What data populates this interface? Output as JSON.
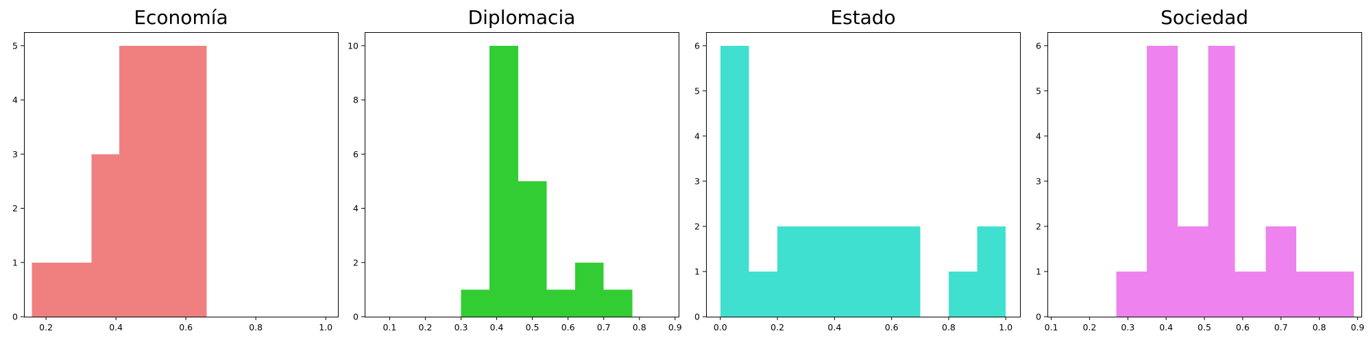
{
  "chart_data": [
    {
      "type": "histogram",
      "title": "Economía",
      "color": "#f08080",
      "xlim": [
        0.137,
        1.035
      ],
      "ylim": [
        0,
        5.25
      ],
      "xticks": [
        0.2,
        0.4,
        0.6,
        0.8,
        1.0
      ],
      "xtick_labels": [
        "0.2",
        "0.4",
        "0.6",
        "0.8",
        "1.0"
      ],
      "yticks": [
        0,
        1,
        2,
        3,
        4,
        5
      ],
      "ytick_labels": [
        "0",
        "1",
        "2",
        "3",
        "4",
        "5"
      ],
      "bins": [
        {
          "x0": 0.16,
          "x1": 0.26,
          "count": 1
        },
        {
          "x0": 0.26,
          "x1": 0.33,
          "count": 1
        },
        {
          "x0": 0.33,
          "x1": 0.41,
          "count": 3
        },
        {
          "x0": 0.41,
          "x1": 0.5,
          "count": 5
        },
        {
          "x0": 0.5,
          "x1": 0.58,
          "count": 5
        },
        {
          "x0": 0.58,
          "x1": 0.66,
          "count": 5
        }
      ]
    },
    {
      "type": "histogram",
      "title": "Diplomacia",
      "color": "#32cd32",
      "xlim": [
        0.03,
        0.91
      ],
      "ylim": [
        0,
        10.5
      ],
      "xticks": [
        0.1,
        0.2,
        0.3,
        0.4,
        0.5,
        0.6,
        0.7,
        0.8,
        0.9
      ],
      "xtick_labels": [
        "0.1",
        "0.2",
        "0.3",
        "0.4",
        "0.5",
        "0.6",
        "0.7",
        "0.8",
        "0.9"
      ],
      "yticks": [
        0,
        2,
        4,
        6,
        8,
        10
      ],
      "ytick_labels": [
        "0",
        "2",
        "4",
        "6",
        "8",
        "10"
      ],
      "bins": [
        {
          "x0": 0.3,
          "x1": 0.38,
          "count": 1
        },
        {
          "x0": 0.38,
          "x1": 0.46,
          "count": 10
        },
        {
          "x0": 0.46,
          "x1": 0.54,
          "count": 5
        },
        {
          "x0": 0.54,
          "x1": 0.62,
          "count": 1
        },
        {
          "x0": 0.62,
          "x1": 0.7,
          "count": 2
        },
        {
          "x0": 0.7,
          "x1": 0.78,
          "count": 1
        }
      ]
    },
    {
      "type": "histogram",
      "title": "Estado",
      "color": "#40e0d0",
      "xlim": [
        -0.05,
        1.05
      ],
      "ylim": [
        0,
        6.3
      ],
      "xticks": [
        0.0,
        0.2,
        0.4,
        0.6,
        0.8,
        1.0
      ],
      "xtick_labels": [
        "0.0",
        "0.2",
        "0.4",
        "0.6",
        "0.8",
        "1.0"
      ],
      "yticks": [
        0,
        1,
        2,
        3,
        4,
        5,
        6
      ],
      "ytick_labels": [
        "0",
        "1",
        "2",
        "3",
        "4",
        "5",
        "6"
      ],
      "bins": [
        {
          "x0": 0.0,
          "x1": 0.1,
          "count": 6
        },
        {
          "x0": 0.1,
          "x1": 0.2,
          "count": 1
        },
        {
          "x0": 0.2,
          "x1": 0.3,
          "count": 2
        },
        {
          "x0": 0.3,
          "x1": 0.4,
          "count": 2
        },
        {
          "x0": 0.4,
          "x1": 0.5,
          "count": 2
        },
        {
          "x0": 0.5,
          "x1": 0.6,
          "count": 2
        },
        {
          "x0": 0.6,
          "x1": 0.7,
          "count": 2
        },
        {
          "x0": 0.8,
          "x1": 0.9,
          "count": 1
        },
        {
          "x0": 0.9,
          "x1": 1.0,
          "count": 2
        }
      ]
    },
    {
      "type": "histogram",
      "title": "Sociedad",
      "color": "#ee82ee",
      "xlim": [
        0.09,
        0.91
      ],
      "ylim": [
        0,
        6.3
      ],
      "xticks": [
        0.1,
        0.2,
        0.3,
        0.4,
        0.5,
        0.6,
        0.7,
        0.8,
        0.9
      ],
      "xtick_labels": [
        "0.1",
        "0.2",
        "0.3",
        "0.4",
        "0.5",
        "0.6",
        "0.7",
        "0.8",
        "0.9"
      ],
      "yticks": [
        0,
        1,
        2,
        3,
        4,
        5,
        6
      ],
      "ytick_labels": [
        "0",
        "1",
        "2",
        "3",
        "4",
        "5",
        "6"
      ],
      "bins": [
        {
          "x0": 0.27,
          "x1": 0.35,
          "count": 1
        },
        {
          "x0": 0.35,
          "x1": 0.43,
          "count": 6
        },
        {
          "x0": 0.43,
          "x1": 0.51,
          "count": 2
        },
        {
          "x0": 0.51,
          "x1": 0.58,
          "count": 6
        },
        {
          "x0": 0.58,
          "x1": 0.66,
          "count": 1
        },
        {
          "x0": 0.66,
          "x1": 0.74,
          "count": 2
        },
        {
          "x0": 0.74,
          "x1": 0.82,
          "count": 1
        },
        {
          "x0": 0.82,
          "x1": 0.89,
          "count": 1
        }
      ]
    }
  ]
}
